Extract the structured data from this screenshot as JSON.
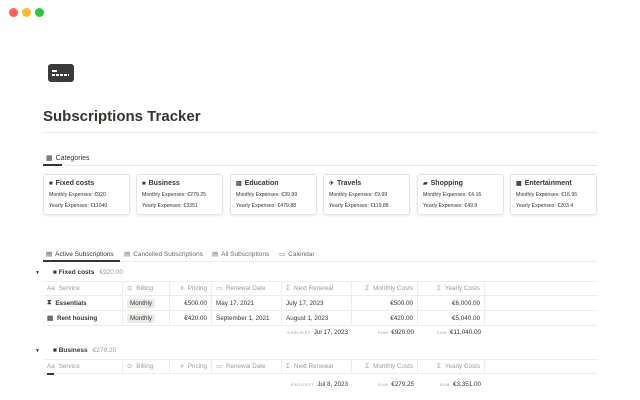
{
  "window": {
    "controls": {
      "close": "#ff5f57",
      "minimize": "#febc2e",
      "maximize": "#28c840"
    }
  },
  "page": {
    "icon": "credit-card-icon",
    "title": "Subscriptions Tracker"
  },
  "categories": {
    "tab_label": "Categories",
    "cards": [
      {
        "icon": "briefcase-icon",
        "name": "Fixed costs",
        "monthly": "Monthly Expenses: €920",
        "yearly": "Yearly Expenses: €11040"
      },
      {
        "icon": "briefcase-icon",
        "name": "Business",
        "monthly": "Monthly Expenses: €279.25",
        "yearly": "Yearly Expenses: €3351"
      },
      {
        "icon": "book-icon",
        "name": "Education",
        "monthly": "Monthly Expenses: €39.99",
        "yearly": "Yearly Expenses: €479.88"
      },
      {
        "icon": "airplane-icon",
        "name": "Travels",
        "monthly": "Monthly Expenses: €9.99",
        "yearly": "Yearly Expenses: €119.88"
      },
      {
        "icon": "shopping-bag-icon",
        "name": "Shopping",
        "monthly": "Monthly Expenses: €4.16",
        "yearly": "Yearly Expenses: €49.9"
      },
      {
        "icon": "film-icon",
        "name": "Entertainment",
        "monthly": "Monthly Expenses: €16.95",
        "yearly": "Yearly Expenses: €203.4"
      }
    ]
  },
  "views": [
    "Active Subscriptions",
    "Cancelled Subscriptions",
    "All Subscriptions",
    "Calendar"
  ],
  "columns": [
    "Service",
    "Billing",
    "Pricing",
    "Renewal Date",
    "Next Renewal",
    "Monthly Costs",
    "Yearly Costs"
  ],
  "groups": [
    {
      "name": "Fixed costs",
      "total": "€920.00",
      "rows": [
        {
          "icon": "hourglass-icon",
          "service": "Essentials",
          "billing": "Monthly",
          "pricing": "€500.00",
          "renewal": "May 17, 2021",
          "next": "July 17, 2023",
          "monthly": "€500.00",
          "yearly": "€6,000.00"
        },
        {
          "icon": "trash-icon",
          "service": "Rent housing",
          "billing": "Monthly",
          "pricing": "€420.00",
          "renewal": "September 1, 2021",
          "next": "August 1, 2023",
          "monthly": "€420.00",
          "yearly": "€5,040.00"
        }
      ],
      "summary": {
        "earliest_label": "EARLIEST",
        "earliest": "Jul 17, 2023",
        "sum_label": "SUM",
        "monthly": "€920.00",
        "yearly": "€11,040.00"
      }
    },
    {
      "name": "Business",
      "total": "€279.25",
      "rows": [],
      "summary": {
        "earliest_label": "EARLIEST",
        "earliest": "Jul 8, 2023",
        "sum_label": "SUM",
        "monthly": "€279.25",
        "yearly": "€3,351.00"
      }
    }
  ]
}
